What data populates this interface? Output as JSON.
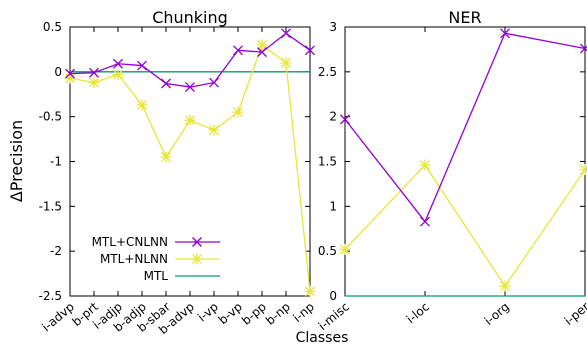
{
  "x_axis_label": "Classes",
  "colors": {
    "cnlnn": "#9400d3",
    "nlnn": "#e6e63c",
    "mtl": "#009e73"
  },
  "chart_data": [
    {
      "type": "line",
      "title": "Chunking",
      "ylabel": "ΔPrecision",
      "xlabel": "",
      "categories": [
        "i-advp",
        "b-prt",
        "i-adjp",
        "b-adjp",
        "b-sbar",
        "b-advp",
        "i-vp",
        "b-vp",
        "b-pp",
        "b-np",
        "i-np"
      ],
      "ylim": [
        -2.5,
        0.5
      ],
      "yticks": [
        "0.5",
        "0",
        "-0.5",
        "-1",
        "-1.5",
        "-2",
        "-2.5"
      ],
      "grid": false,
      "legend_position": "bottom-left",
      "series": [
        {
          "name": "MTL+CNLNN",
          "marker": "x",
          "values": [
            -0.02,
            -0.01,
            0.09,
            0.07,
            -0.13,
            -0.17,
            -0.12,
            0.24,
            0.22,
            0.43,
            0.24
          ]
        },
        {
          "name": "MTL+NLNN",
          "marker": "star",
          "values": [
            -0.07,
            -0.12,
            -0.03,
            -0.37,
            -0.95,
            -0.54,
            -0.65,
            -0.45,
            0.3,
            0.1,
            -2.45
          ]
        },
        {
          "name": "MTL",
          "marker": "none",
          "values": [
            0,
            0,
            0,
            0,
            0,
            0,
            0,
            0,
            0,
            0,
            0
          ]
        }
      ]
    },
    {
      "type": "line",
      "title": "NER",
      "xlabel": "",
      "ylabel": "",
      "categories": [
        "i-misc",
        "i-loc",
        "i-org",
        "i-per"
      ],
      "ylim": [
        0,
        3
      ],
      "yticks": [
        "3",
        "2.5",
        "2",
        "1.5",
        "1",
        "0.5",
        "0"
      ],
      "grid": false,
      "series": [
        {
          "name": "MTL+CNLNN",
          "marker": "x",
          "values": [
            1.97,
            0.83,
            2.93,
            2.76
          ]
        },
        {
          "name": "MTL+NLNN",
          "marker": "star",
          "values": [
            0.52,
            1.46,
            0.11,
            1.41
          ]
        },
        {
          "name": "MTL",
          "marker": "none",
          "values": [
            0,
            0,
            0,
            0
          ]
        }
      ]
    }
  ]
}
